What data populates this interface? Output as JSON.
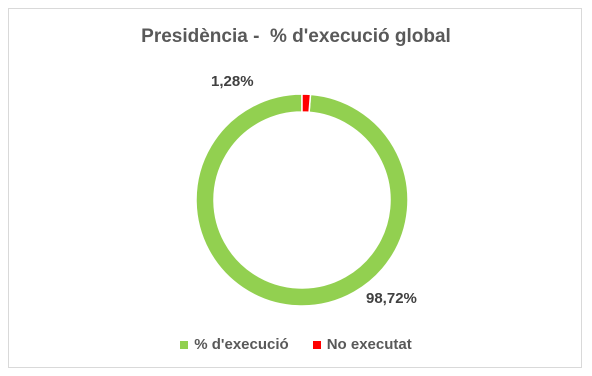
{
  "chart_data": {
    "type": "pie",
    "title": "Presidència -  % d'execució global",
    "categories": [
      "% d'execució",
      "No executat"
    ],
    "values": [
      98.72,
      1.28
    ],
    "labels": [
      "98,72%",
      "1,28%"
    ],
    "colors": [
      "#92d050",
      "#ff0000"
    ],
    "legend_position": "bottom"
  }
}
